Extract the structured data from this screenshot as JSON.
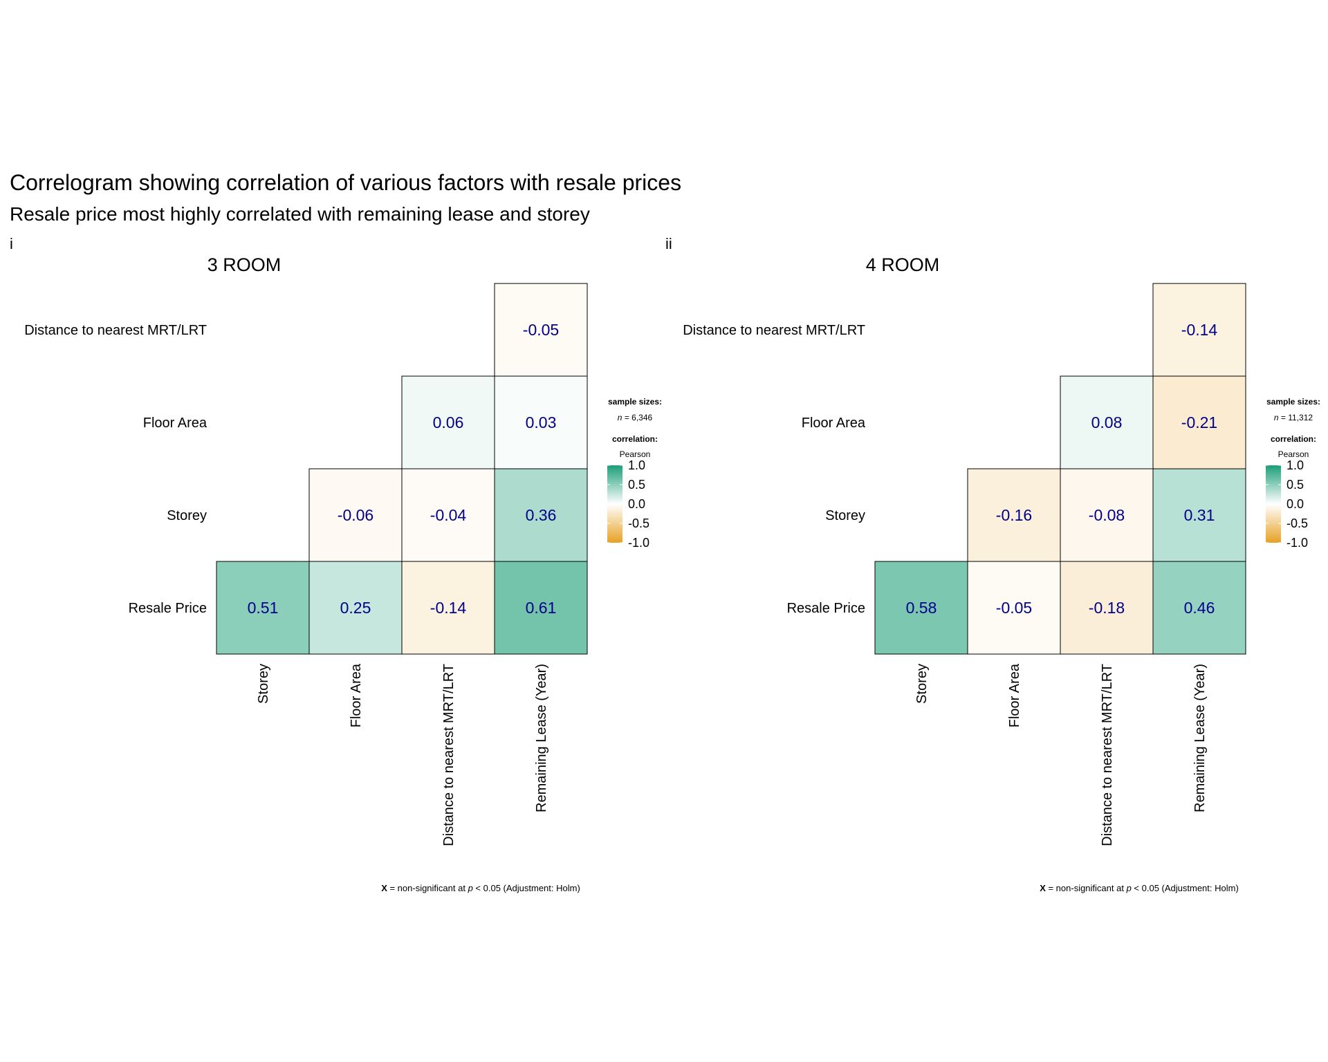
{
  "title": "Correlogram showing correlation of various factors with resale prices",
  "subtitle": "Resale price most highly correlated with remaining lease and storey",
  "colors": {
    "high": "#1b9e77",
    "mid": "#ffffff",
    "low": "#e6a124",
    "value_text": "#00008b"
  },
  "chart_data": [
    {
      "type": "heatmap",
      "tag": "i",
      "title": "3 ROOM",
      "rows": [
        "Distance to nearest MRT/LRT",
        "Floor Area",
        "Storey",
        "Resale Price"
      ],
      "columns": [
        "Storey",
        "Floor Area",
        "Distance to nearest MRT/LRT",
        "Remaining Lease (Year)"
      ],
      "values": [
        [
          null,
          null,
          null,
          -0.05
        ],
        [
          null,
          null,
          0.06,
          0.03
        ],
        [
          null,
          -0.06,
          -0.04,
          0.36
        ],
        [
          0.51,
          0.25,
          -0.14,
          0.61
        ]
      ],
      "legend": {
        "sample_heading": "sample sizes:",
        "sample_symbol": "n",
        "sample_value": "= 6,346",
        "correlation_heading": "correlation:",
        "method": "Pearson",
        "ticks": [
          "1.0",
          "0.5",
          "0.0",
          "-0.5",
          "-1.0"
        ],
        "range": [
          -1,
          1
        ]
      },
      "caption": {
        "symbol": "X",
        "text": " = non-significant at ",
        "p": "p",
        "rest": " < 0.05 (Adjustment: Holm)"
      }
    },
    {
      "type": "heatmap",
      "tag": "ii",
      "title": "4 ROOM",
      "rows": [
        "Distance to nearest MRT/LRT",
        "Floor Area",
        "Storey",
        "Resale Price"
      ],
      "columns": [
        "Storey",
        "Floor Area",
        "Distance to nearest MRT/LRT",
        "Remaining Lease (Year)"
      ],
      "values": [
        [
          null,
          null,
          null,
          -0.14
        ],
        [
          null,
          null,
          0.08,
          -0.21
        ],
        [
          null,
          -0.16,
          -0.08,
          0.31
        ],
        [
          0.58,
          -0.05,
          -0.18,
          0.46
        ]
      ],
      "legend": {
        "sample_heading": "sample sizes:",
        "sample_symbol": "n",
        "sample_value": "= 11,312",
        "correlation_heading": "correlation:",
        "method": "Pearson",
        "ticks": [
          "1.0",
          "0.5",
          "0.0",
          "-0.5",
          "-1.0"
        ],
        "range": [
          -1,
          1
        ]
      },
      "caption": {
        "symbol": "X",
        "text": " = non-significant at ",
        "p": "p",
        "rest": " < 0.05 (Adjustment: Holm)"
      }
    }
  ]
}
